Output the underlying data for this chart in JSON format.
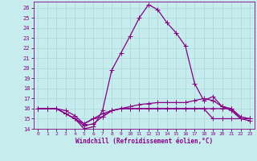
{
  "xlabel": "Windchill (Refroidissement éolien,°C)",
  "background_color": "#c6ecee",
  "line_color": "#880088",
  "grid_color": "#a8d8da",
  "x_values": [
    0,
    1,
    2,
    3,
    4,
    5,
    6,
    7,
    8,
    9,
    10,
    11,
    12,
    13,
    14,
    15,
    16,
    17,
    18,
    19,
    20,
    21,
    22,
    23
  ],
  "series1": [
    16,
    16,
    16,
    15.5,
    15,
    14,
    14.2,
    15.8,
    19.8,
    21.5,
    23.2,
    25.0,
    26.3,
    25.8,
    24.5,
    23.5,
    22.2,
    18.5,
    16.8,
    17.2,
    16.2,
    15.8,
    15.0,
    14.8
  ],
  "series2": [
    16,
    16,
    16,
    15.8,
    15.3,
    14.5,
    15.0,
    15.2,
    15.8,
    16.0,
    16.2,
    16.4,
    16.5,
    16.6,
    16.6,
    16.6,
    16.6,
    16.8,
    17.0,
    16.8,
    16.2,
    16.0,
    15.2,
    15.0
  ],
  "series3": [
    16,
    16,
    16,
    15.5,
    15.0,
    14.5,
    15.0,
    15.5,
    15.8,
    16.0,
    16.0,
    16.0,
    16.0,
    16.0,
    16.0,
    16.0,
    16.0,
    16.0,
    16.0,
    16.0,
    16.0,
    16.0,
    15.0,
    15.0
  ],
  "series4": [
    16,
    16,
    16,
    15.5,
    15.0,
    14.3,
    14.5,
    15.2,
    15.8,
    16.0,
    16.0,
    16.0,
    16.0,
    16.0,
    16.0,
    16.0,
    16.0,
    16.0,
    16.0,
    15.0,
    15.0,
    15.0,
    15.0,
    15.0
  ],
  "ylim": [
    14,
    26.6
  ],
  "xlim": [
    -0.5,
    23.5
  ],
  "yticks": [
    14,
    15,
    16,
    17,
    18,
    19,
    20,
    21,
    22,
    23,
    24,
    25,
    26
  ],
  "xticks": [
    0,
    1,
    2,
    3,
    4,
    5,
    6,
    7,
    8,
    9,
    10,
    11,
    12,
    13,
    14,
    15,
    16,
    17,
    18,
    19,
    20,
    21,
    22,
    23
  ],
  "marker": "+",
  "markersize": 4,
  "linewidth": 0.9
}
